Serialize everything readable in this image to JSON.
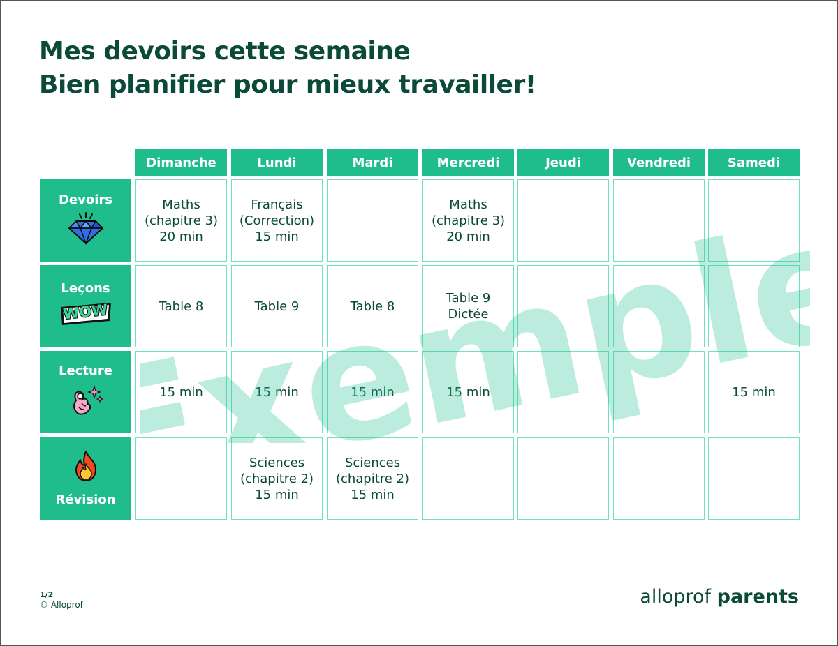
{
  "title": {
    "line1": "Mes devoirs cette semaine",
    "line2": "Bien planifier pour mieux travailler!"
  },
  "watermark": "Exemple",
  "days": [
    "Dimanche",
    "Lundi",
    "Mardi",
    "Mercredi",
    "Jeudi",
    "Vendredi",
    "Samedi"
  ],
  "rows": [
    {
      "label": "Devoirs",
      "icon": "diamond-icon"
    },
    {
      "label": "Leçons",
      "icon": "wow-sticker-icon"
    },
    {
      "label": "Lecture",
      "icon": "ok-hand-sparkles-icon"
    },
    {
      "label": "Révision",
      "icon": "fire-icon"
    }
  ],
  "grid": [
    [
      [
        "Maths",
        "(chapitre 3)",
        "20 min"
      ],
      [
        "Français",
        "(Correction)",
        "15 min"
      ],
      [],
      [
        "Maths",
        "(chapitre 3)",
        "20 min"
      ],
      [],
      [],
      []
    ],
    [
      [
        "Table 8"
      ],
      [
        "Table 9"
      ],
      [
        "Table 8"
      ],
      [
        "Table 9",
        "Dictée"
      ],
      [],
      [],
      []
    ],
    [
      [
        "15 min"
      ],
      [
        "15 min"
      ],
      [
        "15 min"
      ],
      [
        "15 min"
      ],
      [],
      [],
      [
        "15 min"
      ]
    ],
    [
      [],
      [
        "Sciences",
        "(chapitre 2)",
        "15 min"
      ],
      [
        "Sciences",
        "(chapitre 2)",
        "15 min"
      ],
      [],
      [],
      [],
      []
    ]
  ],
  "footer": {
    "page": "1/2",
    "copyright": "© Alloprof"
  },
  "brand": {
    "part1": "alloprof",
    "part2": "parents"
  },
  "colors": {
    "accent": "#20bd8c",
    "text": "#0b4a38",
    "cell_border": "#6fe0c0"
  }
}
